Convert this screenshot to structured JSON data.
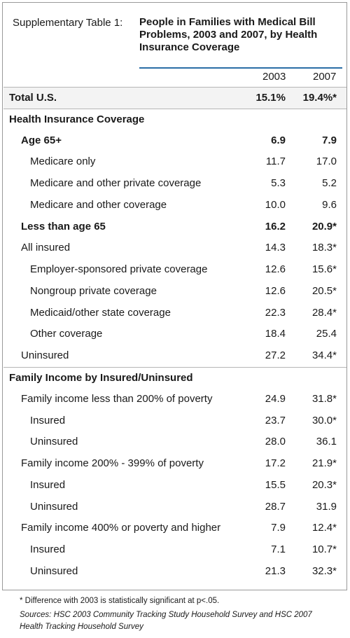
{
  "header": {
    "table_label": "Supplementary Table 1:",
    "title": "People in Families with Medical Bill Problems, 2003 and 2007, by Health Insurance Coverage",
    "col_2003": "2003",
    "col_2007": "2007"
  },
  "rows": [
    {
      "label": "Total U.S.",
      "v2003": "15.1%",
      "v2007": "19.4%*"
    },
    {
      "label": "Health Insurance Coverage",
      "v2003": "",
      "v2007": ""
    },
    {
      "label": "Age 65+",
      "v2003": "6.9",
      "v2007": "7.9"
    },
    {
      "label": "Medicare only",
      "v2003": "11.7",
      "v2007": "17.0"
    },
    {
      "label": "Medicare and other private coverage",
      "v2003": "5.3",
      "v2007": "5.2"
    },
    {
      "label": "Medicare and other coverage",
      "v2003": "10.0",
      "v2007": "9.6"
    },
    {
      "label": "Less than age 65",
      "v2003": "16.2",
      "v2007": "20.9*"
    },
    {
      "label": "All insured",
      "v2003": "14.3",
      "v2007": "18.3*"
    },
    {
      "label": "Employer-sponsored private coverage",
      "v2003": "12.6",
      "v2007": "15.6*"
    },
    {
      "label": "Nongroup private coverage",
      "v2003": "12.6",
      "v2007": "20.5*"
    },
    {
      "label": "Medicaid/other state coverage",
      "v2003": "22.3",
      "v2007": "28.4*"
    },
    {
      "label": "Other coverage",
      "v2003": "18.4",
      "v2007": "25.4"
    },
    {
      "label": "Uninsured",
      "v2003": "27.2",
      "v2007": "34.4*"
    },
    {
      "label": "Family Income by Insured/Uninsured",
      "v2003": "",
      "v2007": ""
    },
    {
      "label": "Family income less than 200% of poverty",
      "v2003": "24.9",
      "v2007": "31.8*"
    },
    {
      "label": "Insured",
      "v2003": "23.7",
      "v2007": "30.0*"
    },
    {
      "label": "Uninsured",
      "v2003": "28.0",
      "v2007": "36.1"
    },
    {
      "label": "Family income 200% - 399% of poverty",
      "v2003": "17.2",
      "v2007": "21.9*"
    },
    {
      "label": "Insured",
      "v2003": "15.5",
      "v2007": "20.3*"
    },
    {
      "label": "Uninsured",
      "v2003": "28.7",
      "v2007": "31.9"
    },
    {
      "label": "Family income 400% or poverty and higher",
      "v2003": "7.9",
      "v2007": "12.4*"
    },
    {
      "label": "Insured",
      "v2003": "7.1",
      "v2007": "10.7*"
    },
    {
      "label": "Uninsured",
      "v2003": "21.3",
      "v2007": "32.3*"
    }
  ],
  "footnote": "* Difference with 2003 is statistically significant at p<.05.",
  "sources": "Sources: HSC 2003 Community Tracking Study Household Survey and HSC 2007 Health Tracking Household Survey"
}
